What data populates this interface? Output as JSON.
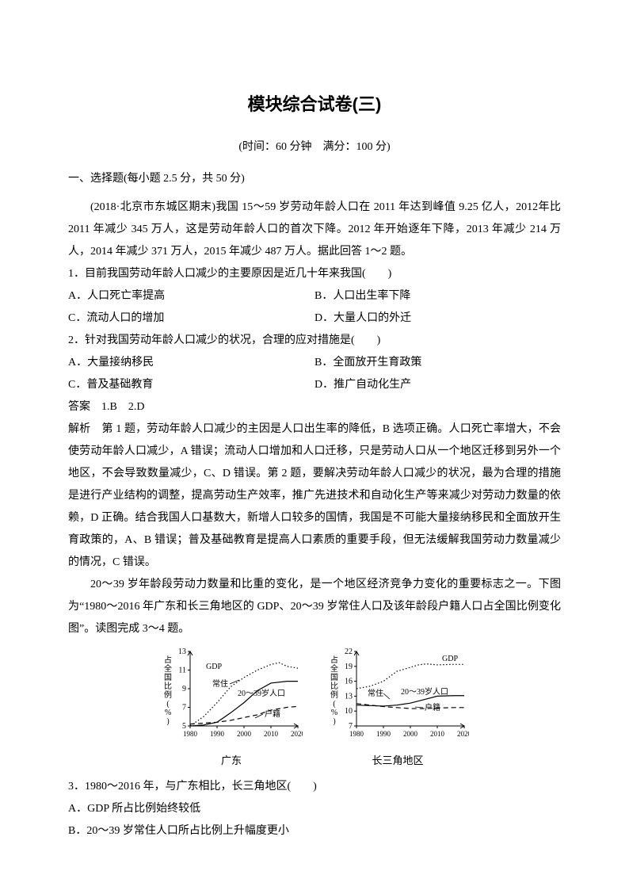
{
  "title": "模块综合试卷(三)",
  "subtitle": "(时间：60 分钟　满分：100 分)",
  "section1_head": "一、选择题(每小题 2.5 分，共 50 分)",
  "intro1": "(2018·北京市东城区期末)我国 15～59 岁劳动年龄人口在 2011 年达到峰值 9.25 亿人，2012年比 2011 年减少 345 万人，这是劳动年龄人口的首次下降。2012 年开始逐年下降，2013 年减少 214 万人，2014 年减少 371 万人，2015 年减少 487 万人。据此回答 1～2 题。",
  "q1": "1．目前我国劳动年龄人口减少的主要原因是近几十年来我国(　　)",
  "q1a": "A．人口死亡率提高",
  "q1b": "B．人口出生率下降",
  "q1c": "C．流动人口的增加",
  "q1d": "D．大量人口的外迁",
  "q2": "2．针对我国劳动年龄人口减少的状况，合理的应对措施是(　　)",
  "q2a": "A．大量接纳移民",
  "q2b": "B．全面放开生育政策",
  "q2c": "C．普及基础教育",
  "q2d": "D．推广自动化生产",
  "ans1": "答案　1.B　2.D",
  "exp1": "解析　第 1 题，劳动年龄人口减少的主因是人口出生率的降低，B 选项正确。人口死亡率增大，不会使劳动年龄人口减少，A 错误；流动人口增加和人口迁移，只是劳动人口从一个地区迁移到另外一个地区，不会导致数量减少，C、D 错误。第 2 题，要解决劳动年龄人口减少的状况，最为合理的措施是进行产业结构的调整，提高劳动生产效率，推广先进技术和自动化生产等来减少对劳动力数量的依赖，D 正确。结合我国人口基数大，新增人口较多的国情，我国是不可能大量接纳移民和全面放开生育政策的，A、B 错误；普及基础教育是提高人口素质的重要手段，但无法缓解我国劳动力数量减少的情况，C 错误。",
  "intro2": "20～39 岁年龄段劳动力数量和比重的变化，是一个地区经济竞争力变化的重要标志之一。下图为“1980～2016 年广东和长三角地区的 GDP、20～39 岁常住人口及该年龄段户籍人口占全国比例变化图”。读图完成 3～4 题。",
  "chart1": {
    "caption": "广东",
    "y_label": "占全国比例(%)",
    "y_ticks": [
      "5",
      "7",
      "9",
      "11",
      "13"
    ],
    "x_ticks": [
      "1980",
      "1990",
      "2000",
      "2010",
      "2020"
    ],
    "series": {
      "gdp": {
        "label": "GDP",
        "style": "dotted",
        "points": [
          [
            1980,
            5
          ],
          [
            1985,
            6
          ],
          [
            1990,
            7.5
          ],
          [
            1995,
            9.2
          ],
          [
            2000,
            10.2
          ],
          [
            2005,
            11
          ],
          [
            2010,
            11.6
          ],
          [
            2013,
            11.8
          ],
          [
            2016,
            11.4
          ],
          [
            2020,
            11.2
          ]
        ]
      },
      "resident": {
        "label": "常住",
        "style": "solid",
        "points": [
          [
            1980,
            5
          ],
          [
            1985,
            5.1
          ],
          [
            1990,
            5.4
          ],
          [
            1995,
            6.4
          ],
          [
            2000,
            7.5
          ],
          [
            2005,
            8.8
          ],
          [
            2010,
            9.6
          ],
          [
            2016,
            9.8
          ],
          [
            2020,
            9.8
          ]
        ]
      },
      "age": {
        "label": "20～39岁人口",
        "style": "none",
        "points": []
      },
      "huji": {
        "label": "户籍",
        "style": "dashed",
        "points": [
          [
            1980,
            5.2
          ],
          [
            1985,
            5.3
          ],
          [
            1990,
            5.4
          ],
          [
            1995,
            5.6
          ],
          [
            2000,
            5.9
          ],
          [
            2005,
            6.2
          ],
          [
            2010,
            6.7
          ],
          [
            2016,
            7.0
          ],
          [
            2020,
            7.1
          ]
        ]
      }
    }
  },
  "chart2": {
    "caption": "长三角地区",
    "y_label": "占全国比例(%)",
    "y_ticks": [
      "7",
      "10",
      "13",
      "16",
      "19",
      "22"
    ],
    "x_ticks": [
      "1980",
      "1990",
      "2000",
      "2010",
      "2020"
    ],
    "series": {
      "gdp": {
        "label": "GDP",
        "style": "dotted",
        "points": [
          [
            1980,
            14.5
          ],
          [
            1985,
            15
          ],
          [
            1990,
            16
          ],
          [
            1995,
            18
          ],
          [
            2000,
            18.8
          ],
          [
            2003,
            19.3
          ],
          [
            2006,
            19.5
          ],
          [
            2010,
            19.3
          ],
          [
            2016,
            19.4
          ],
          [
            2020,
            19.4
          ]
        ]
      },
      "resident": {
        "label": "常住",
        "style": "solid",
        "points": [
          [
            1980,
            11.2
          ],
          [
            1985,
            11.1
          ],
          [
            1990,
            11.0
          ],
          [
            1995,
            11.2
          ],
          [
            2000,
            11.6
          ],
          [
            2005,
            12.3
          ],
          [
            2010,
            13.0
          ],
          [
            2016,
            13.1
          ],
          [
            2020,
            13.1
          ]
        ]
      },
      "age": {
        "label": "20～39岁人口",
        "style": "none",
        "points": []
      },
      "huji": {
        "label": "户籍",
        "style": "dashed",
        "points": [
          [
            1980,
            11.5
          ],
          [
            1985,
            11.2
          ],
          [
            1990,
            10.9
          ],
          [
            1995,
            10.7
          ],
          [
            2000,
            10.5
          ],
          [
            2005,
            10.5
          ],
          [
            2010,
            10.6
          ],
          [
            2016,
            10.7
          ],
          [
            2020,
            10.7
          ]
        ]
      }
    }
  },
  "q3": "3．1980～2016 年，与广东相比，长三角地区(　　)",
  "q3a": "A．GDP 所占比例始终较低",
  "q3b": "B．20～39 岁常住人口所占比例上升幅度更小",
  "colors": {
    "line": "#000000",
    "bg": "#ffffff"
  }
}
